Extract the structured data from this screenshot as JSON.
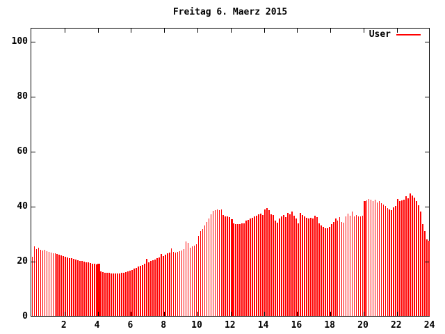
{
  "title": "Freitag 6. Maerz 2015",
  "legend": {
    "label": "User",
    "color": "#ff0000"
  },
  "chart_data": {
    "type": "bar",
    "style": "impulses",
    "title": "Freitag 6. Maerz 2015",
    "xlabel": "",
    "ylabel": "",
    "series_name": "User",
    "bar_color": "#ff0000",
    "x_unit": "hours",
    "interval_hours": 0.125,
    "xlim": [
      0,
      24
    ],
    "ylim": [
      0,
      105
    ],
    "x_ticks": [
      2,
      4,
      6,
      8,
      10,
      12,
      14,
      16,
      18,
      20,
      22,
      24
    ],
    "y_ticks": [
      0,
      20,
      40,
      60,
      80,
      100
    ],
    "grid": false,
    "legend_position": "top-right-inside",
    "wide_bar_indices": [
      32,
      96,
      160
    ],
    "values": [
      21.5,
      25.3,
      24.3,
      24.8,
      24.0,
      23.8,
      24.0,
      23.5,
      23.3,
      23.1,
      22.9,
      22.7,
      22.5,
      22.3,
      22.1,
      21.9,
      21.5,
      21.3,
      21.1,
      20.9,
      20.7,
      20.5,
      20.3,
      20.1,
      20.0,
      19.8,
      19.6,
      19.5,
      19.3,
      19.1,
      18.9,
      18.7,
      18.9,
      16.3,
      16.0,
      15.8,
      15.7,
      15.6,
      15.5,
      15.5,
      15.4,
      15.5,
      15.5,
      15.6,
      15.7,
      15.9,
      16.1,
      16.4,
      16.8,
      17.2,
      17.6,
      18.0,
      18.3,
      18.6,
      18.9,
      20.7,
      19.5,
      19.9,
      20.3,
      20.6,
      20.9,
      21.2,
      22.5,
      21.7,
      22.2,
      22.7,
      23.1,
      24.5,
      23.2,
      23.0,
      23.3,
      23.6,
      23.9,
      24.3,
      27.0,
      26.5,
      24.9,
      25.3,
      25.7,
      26.1,
      29.0,
      31.0,
      31.7,
      33.0,
      34.2,
      35.4,
      37.0,
      38.3,
      38.6,
      38.8,
      38.5,
      38.7,
      36.8,
      36.3,
      36.2,
      36.0,
      35.2,
      33.6,
      33.4,
      33.5,
      33.4,
      33.6,
      33.8,
      34.7,
      35.0,
      35.4,
      35.8,
      36.2,
      36.5,
      36.9,
      37.2,
      36.8,
      38.7,
      39.2,
      38.4,
      37.0,
      36.7,
      34.7,
      33.9,
      35.5,
      36.3,
      36.7,
      36.0,
      37.5,
      37.0,
      38.0,
      36.4,
      35.4,
      33.7,
      37.5,
      36.8,
      36.2,
      35.8,
      35.5,
      35.7,
      35.4,
      36.5,
      36.0,
      33.7,
      32.9,
      32.4,
      32.0,
      31.8,
      32.3,
      33.5,
      34.1,
      35.4,
      34.7,
      36.0,
      34.2,
      33.9,
      36.2,
      37.2,
      36.4,
      38.0,
      36.3,
      36.7,
      36.1,
      36.3,
      36.5,
      41.8,
      42.0,
      42.6,
      42.2,
      41.8,
      42.4,
      41.4,
      41.9,
      40.9,
      40.5,
      40.1,
      39.3,
      38.8,
      38.5,
      39.5,
      40.1,
      42.6,
      41.9,
      42.1,
      42.3,
      43.5,
      42.8,
      44.5,
      43.9,
      43.1,
      41.8,
      40.2,
      38.0,
      33.5,
      31.0,
      27.8,
      27.3
    ]
  }
}
